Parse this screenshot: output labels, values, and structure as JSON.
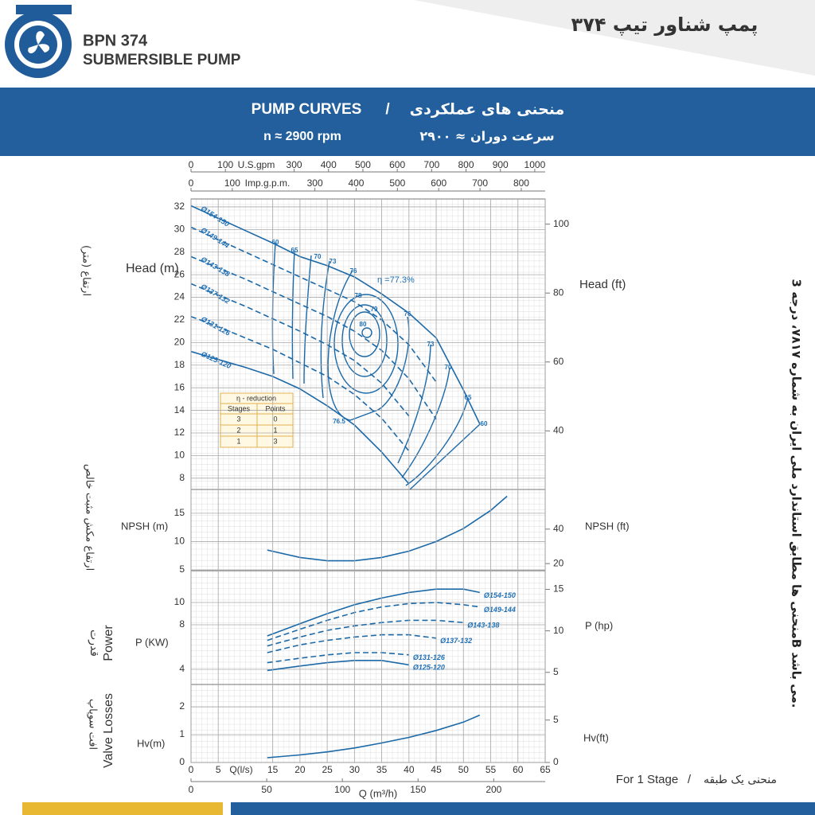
{
  "header": {
    "model": "BPN 374",
    "subtitle": "SUBMERSIBLE PUMP",
    "title_fa": "پمپ شناور تیپ ۳۷۴"
  },
  "banner": {
    "title": "PUMP CURVES",
    "separator": "/",
    "title_fa": "منحنی های عملکردی",
    "speed": "n ≈ 2900 rpm",
    "speed_fa": "سرعت دوران ≈ ۲۹۰۰"
  },
  "side_labels": {
    "head_fa": "ارتفاع (متر)",
    "npsh_fa": "ارتفاع مکش مثبت خالص",
    "power_fa": "قدرت",
    "power": "Power",
    "valve_fa": "افت سوپاپ",
    "valve": "Valve Losses",
    "standard_fa": "منحنی ها مطابق استاندارد ملی ایران به شماره ۷۸۱۷، درجه 3B می باشد."
  },
  "footer": {
    "stage": "For 1 Stage",
    "separator": "/",
    "stage_fa": "منحنی یک طبقه"
  },
  "efficiency_note": "η =77.3%",
  "efficiency_labels": [
    60,
    65,
    70,
    73,
    76,
    78,
    79,
    80,
    76,
    73,
    70,
    65,
    60,
    76.5
  ],
  "reduction_table": {
    "title": "η - reduction",
    "columns": [
      "Stages",
      "Points"
    ],
    "rows": [
      [
        3,
        0
      ],
      [
        2,
        1
      ],
      [
        1,
        3
      ]
    ]
  },
  "x_axes": [
    {
      "label": "U.S.gpm",
      "lim": [
        0,
        1030.3
      ],
      "ticks": [
        0,
        100,
        300,
        400,
        500,
        600,
        700,
        800,
        900,
        1000
      ]
    },
    {
      "label": "Imp.g.p.m.",
      "lim": [
        0,
        857.9
      ],
      "ticks": [
        0,
        100,
        300,
        400,
        500,
        600,
        700,
        800
      ]
    },
    {
      "label": "Q (m³/h)",
      "lim": [
        0,
        234
      ],
      "ticks": [
        0,
        50,
        100,
        150,
        200
      ]
    }
  ],
  "chart_data": [
    {
      "type": "line",
      "ylabel": "Head (m)",
      "y2label": "Head (ft)",
      "xlim": [
        0,
        65
      ],
      "ylim": [
        7,
        32.7
      ],
      "yticks": [
        8,
        10,
        12,
        14,
        16,
        18,
        20,
        22,
        24,
        26,
        28,
        30,
        32
      ],
      "y2lim": [
        23,
        107.3
      ],
      "y2ticks": [
        40,
        60,
        80,
        100
      ],
      "grid": true,
      "label_position": "start",
      "x": [
        0,
        5,
        10,
        15,
        20,
        25,
        30,
        35,
        40,
        45,
        50,
        53
      ],
      "series": [
        {
          "name": "Ø154-150",
          "color": "#1c69a8",
          "style": "solid",
          "values": [
            32.1,
            31.0,
            29.9,
            28.8,
            27.6,
            26.8,
            25.8,
            24.3,
            22.6,
            20.4,
            15.8,
            12.8
          ]
        },
        {
          "name": "Ø149-144",
          "color": "#1c69a8",
          "style": "dashed",
          "values": [
            30.2,
            29.1,
            28.0,
            26.9,
            25.8,
            24.7,
            23.6,
            22.0,
            19.8,
            16.5,
            null,
            null
          ]
        },
        {
          "name": "Ø143-138",
          "color": "#1c69a8",
          "style": "dashed",
          "values": [
            27.6,
            26.6,
            25.6,
            24.5,
            23.4,
            22.3,
            21.0,
            19.3,
            16.8,
            13.2,
            null,
            null
          ]
        },
        {
          "name": "Ø137-132",
          "color": "#1c69a8",
          "style": "dashed",
          "values": [
            25.2,
            24.2,
            23.2,
            22.1,
            21.0,
            19.8,
            18.4,
            16.4,
            13.5,
            null,
            null,
            null
          ]
        },
        {
          "name": "Ø131-126",
          "color": "#1c69a8",
          "style": "dashed",
          "values": [
            22.3,
            21.4,
            20.4,
            19.4,
            18.2,
            17.0,
            15.4,
            13.3,
            10.4,
            null,
            null,
            null
          ]
        },
        {
          "name": "Ø125-120",
          "color": "#1c69a8",
          "style": "solid",
          "values": [
            19.2,
            18.5,
            17.8,
            17.0,
            15.9,
            14.4,
            12.7,
            10.3,
            7.5,
            null,
            null,
            null
          ]
        }
      ]
    },
    {
      "type": "line",
      "ylabel": "NPSH (m)",
      "y2label": "NPSH (ft)",
      "xlim": [
        0,
        65
      ],
      "ylim": [
        4.86,
        19.2
      ],
      "yticks": [
        5,
        10,
        15
      ],
      "y2lim": [
        15.9,
        63
      ],
      "y2ticks": [
        20,
        40
      ],
      "grid": true,
      "x": [
        14,
        20,
        25,
        30,
        35,
        40,
        45,
        50,
        55,
        58
      ],
      "series": [
        {
          "name": "NPSH",
          "color": "#1c69a8",
          "style": "solid",
          "values": [
            8.5,
            7.2,
            6.6,
            6.6,
            7.2,
            8.3,
            10.0,
            12.3,
            15.5,
            18.0
          ]
        }
      ],
      "show_names": false
    },
    {
      "type": "line",
      "ylabel": "P (KW)",
      "y2label": "P (hp)",
      "xlim": [
        0,
        65
      ],
      "ylim": [
        2.64,
        12.86
      ],
      "yticks": [
        4,
        8,
        10
      ],
      "y2lim": [
        3.54,
        17.25
      ],
      "y2ticks": [
        5,
        10,
        15
      ],
      "grid": true,
      "label_position": "end",
      "x": [
        14,
        20,
        25,
        30,
        35,
        40,
        45,
        50,
        53
      ],
      "series": [
        {
          "name": "Ø154-150",
          "color": "#1c69a8",
          "style": "solid",
          "values": [
            7.0,
            8.1,
            9.0,
            9.8,
            10.4,
            10.9,
            11.2,
            11.2,
            10.9
          ]
        },
        {
          "name": "Ø149-144",
          "color": "#1c69a8",
          "style": "dashed",
          "values": [
            6.6,
            7.6,
            8.4,
            9.1,
            9.6,
            9.9,
            10.0,
            9.8,
            9.6
          ]
        },
        {
          "name": "Ø143-138",
          "color": "#1c69a8",
          "style": "dashed",
          "values": [
            6.1,
            6.9,
            7.5,
            7.9,
            8.2,
            8.4,
            8.4,
            8.2,
            null
          ]
        },
        {
          "name": "Ø137-132",
          "color": "#1c69a8",
          "style": "dashed",
          "values": [
            5.5,
            6.2,
            6.6,
            6.9,
            7.1,
            7.1,
            6.8,
            null,
            null
          ]
        },
        {
          "name": "Ø131-126",
          "color": "#1c69a8",
          "style": "dashed",
          "values": [
            4.6,
            5.0,
            5.3,
            5.5,
            5.5,
            5.3,
            null,
            null,
            null
          ]
        },
        {
          "name": "Ø125-120",
          "color": "#1c69a8",
          "style": "solid",
          "values": [
            3.9,
            4.3,
            4.6,
            4.8,
            4.8,
            4.4,
            null,
            null,
            null
          ]
        }
      ]
    },
    {
      "type": "line",
      "ylabel": "Hv(m)",
      "y2label": "Hv(ft)",
      "xlabel": "Q(l/s)",
      "xlim": [
        0,
        65
      ],
      "xticks": [
        0,
        5,
        15,
        20,
        25,
        30,
        35,
        40,
        45,
        50,
        55,
        60,
        65
      ],
      "ylim": [
        0,
        2.8
      ],
      "yticks": [
        0,
        1,
        2
      ],
      "y2lim": [
        0,
        9.19
      ],
      "y2ticks": [
        0,
        5
      ],
      "grid": true,
      "x": [
        14,
        20,
        25,
        30,
        35,
        40,
        45,
        50,
        53
      ],
      "series": [
        {
          "name": "Hv",
          "color": "#1c69a8",
          "style": "solid",
          "values": [
            0.17,
            0.27,
            0.38,
            0.52,
            0.7,
            0.9,
            1.15,
            1.45,
            1.7
          ]
        }
      ],
      "show_names": false
    }
  ]
}
